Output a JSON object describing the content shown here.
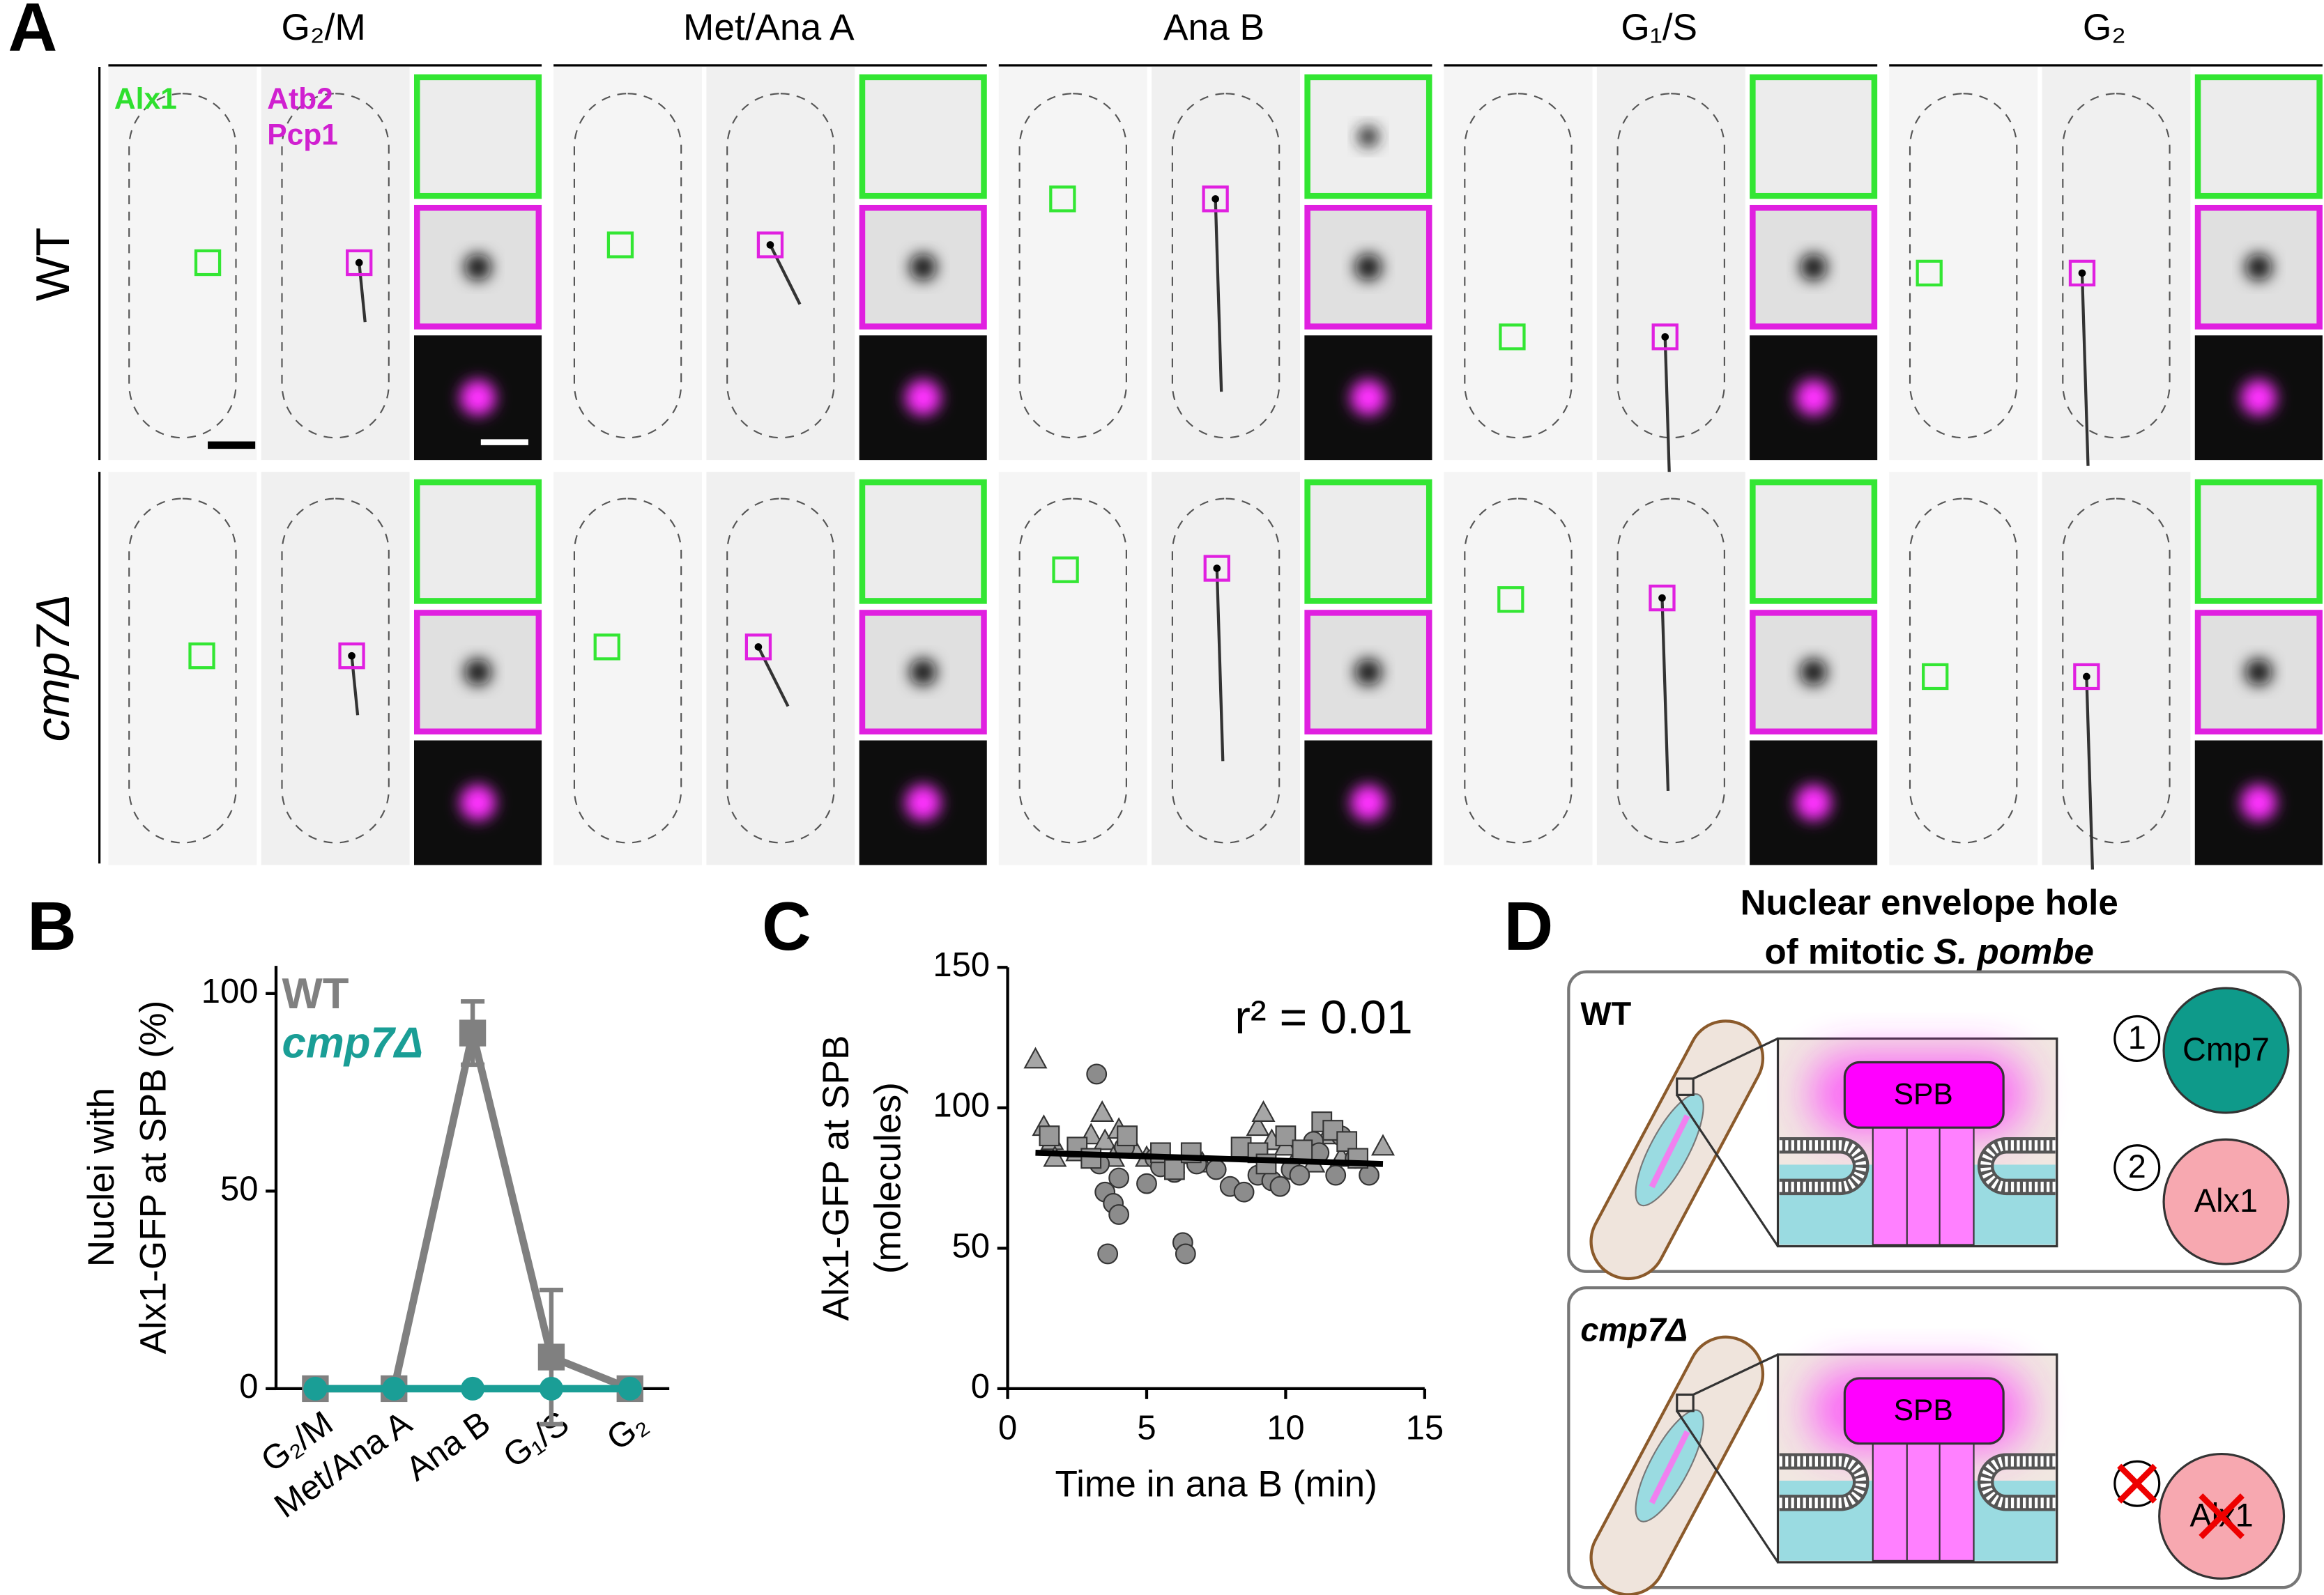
{
  "panel_labels": [
    "A",
    "B",
    "C",
    "D"
  ],
  "panel_a": {
    "columns": [
      "G₂/M",
      "Met/Ana A",
      "Ana B",
      "G₁/S",
      "G₂"
    ],
    "rows": [
      "WT",
      "cmp7Δ"
    ],
    "channels": [
      "Alx1",
      "Atb2",
      "Pcp1"
    ]
  },
  "chart_data": [
    {
      "type": "line",
      "ylabel": [
        "Nuclei with",
        "Alx1-GFP at SPB (%)"
      ],
      "categories": [
        "G₂/M",
        "Met/Ana A",
        "Ana B",
        "G₁/S",
        "G₂"
      ],
      "ylim": [
        0,
        107
      ],
      "yticks": [
        0,
        50,
        100
      ],
      "legend": "top-left",
      "series": [
        {
          "name": "WT",
          "color": "#808080",
          "marker": "square",
          "values": [
            0,
            0,
            90,
            8,
            0
          ],
          "errors": [
            null,
            null,
            8,
            17,
            null
          ]
        },
        {
          "name": "cmp7Δ",
          "color": "#1a9e96",
          "marker": "circle",
          "values": [
            0,
            0,
            0,
            0,
            0
          ]
        }
      ]
    },
    {
      "type": "scatter",
      "xlabel": "Time in ana B (min)",
      "ylabel": [
        "Alx1-GFP at SPB",
        "(molecules)"
      ],
      "annotation": "r² = 0.01",
      "xlim": [
        0,
        15
      ],
      "xticks": [
        0,
        5,
        10,
        15
      ],
      "ylim": [
        0,
        150
      ],
      "yticks": [
        0,
        50,
        100,
        150
      ],
      "series": [
        {
          "marker": "triangle",
          "color": "#a6a6a6",
          "x": [
            1,
            1.3,
            1.6,
            1.7,
            2.5,
            3,
            3.4,
            3.5,
            3.8,
            4,
            4.5,
            5,
            6.5,
            7,
            8.5,
            9,
            9.2,
            9.5,
            10,
            10.5,
            11,
            11.5,
            12,
            13.5
          ],
          "values": [
            117,
            93,
            88,
            82,
            84,
            90,
            98,
            88,
            82,
            92,
            86,
            82,
            83,
            80,
            85,
            93,
            98,
            88,
            86,
            84,
            80,
            90,
            82,
            86
          ]
        },
        {
          "marker": "circle",
          "color": "#8c8c8c",
          "x": [
            3.2,
            3.3,
            3.5,
            3.6,
            3.8,
            4,
            4,
            4.2,
            5,
            5.3,
            5.5,
            6,
            6.3,
            6.4,
            6.8,
            7.5,
            8,
            8.5,
            9,
            9.5,
            9.8,
            10.2,
            10.5,
            11,
            11.2,
            11.8,
            12,
            12.5,
            13
          ],
          "values": [
            112,
            80,
            70,
            48,
            66,
            75,
            62,
            86,
            73,
            82,
            79,
            77,
            52,
            48,
            80,
            78,
            72,
            70,
            76,
            74,
            72,
            78,
            76,
            88,
            84,
            76,
            90,
            82,
            76
          ]
        },
        {
          "marker": "square",
          "color": "#999999",
          "x": [
            1.5,
            2.5,
            3,
            4.3,
            5.5,
            6,
            6.6,
            8.4,
            9,
            9.3,
            10,
            10.6,
            11.3,
            11.7,
            12.2,
            12.6
          ],
          "values": [
            90,
            86,
            82,
            90,
            84,
            78,
            84,
            86,
            84,
            80,
            90,
            85,
            95,
            92,
            88,
            82
          ]
        }
      ],
      "fit": {
        "color": "#000000",
        "x": [
          1,
          13.5
        ],
        "values": [
          84,
          80
        ]
      }
    }
  ],
  "panel_d": {
    "title": [
      "Nuclear envelope hole",
      "of mitotic",
      "S. pombe"
    ],
    "wt": {
      "label": "WT",
      "spb": "SPB",
      "steps": [
        {
          "number": "1",
          "protein": "Cmp7"
        },
        {
          "number": "2",
          "protein": "Alx1"
        }
      ]
    },
    "mutant": {
      "label": "cmp7Δ",
      "spb": "SPB",
      "protein": "Alx1"
    }
  }
}
